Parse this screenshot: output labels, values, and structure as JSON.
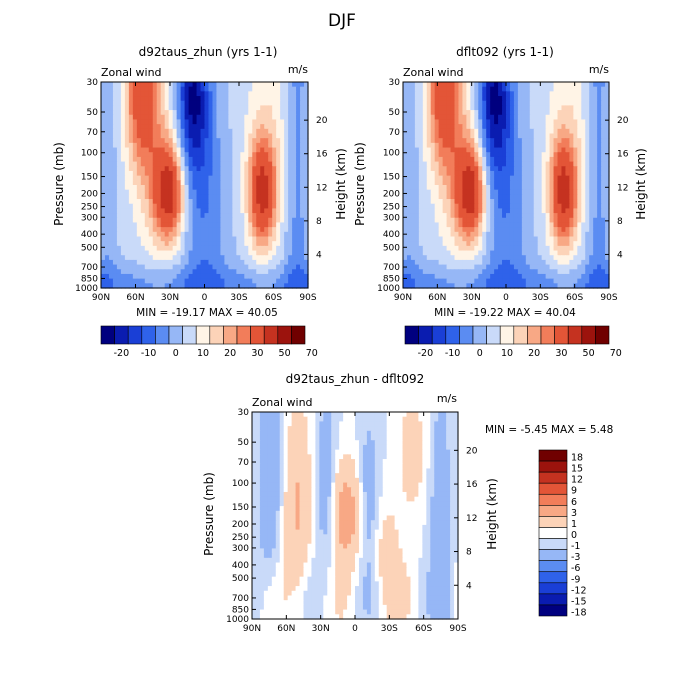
{
  "figure_title": "DJF",
  "colors": {
    "main_scale": [
      "#00007f",
      "#0a1cb0",
      "#1a3fd6",
      "#2f62ea",
      "#5b8cf2",
      "#96b7f6",
      "#c9daf9",
      "#fff4e6",
      "#fcd3b8",
      "#f8a885",
      "#f27d5a",
      "#e35537",
      "#c53220",
      "#9c130d",
      "#700000"
    ],
    "diff_scale": [
      "#00007f",
      "#0a1cb0",
      "#1a3fd6",
      "#2f62ea",
      "#5b8cf2",
      "#96b7f6",
      "#c9daf9",
      "#ffffff",
      "#fcd3b8",
      "#f8a885",
      "#f27d5a",
      "#e35537",
      "#c53220",
      "#9c130d",
      "#700000"
    ]
  },
  "chart_data": [
    {
      "type": "contour",
      "id": "top-left",
      "title": "d92taus_zhun (yrs 1-1)",
      "subtitle_left": "Zonal wind",
      "subtitle_right": "m/s",
      "ylabel": "Pressure (mb)",
      "y2label": "Height (km)",
      "x_ticks": [
        "90N",
        "60N",
        "30N",
        "0",
        "30S",
        "60S",
        "90S"
      ],
      "y_ticks": [
        "30",
        "50",
        "70",
        "100",
        "150",
        "200",
        "250",
        "300",
        "400",
        "500",
        "700",
        "850",
        "1000"
      ],
      "y_values": [
        30,
        50,
        70,
        100,
        150,
        200,
        250,
        300,
        400,
        500,
        700,
        850,
        1000
      ],
      "y2_ticks": [
        "20",
        "16",
        "12",
        "8",
        "4"
      ],
      "ylim": [
        1000,
        30
      ],
      "stats": "MIN = -19.17   MAX = 40.05",
      "min": -19.17,
      "max": 40.05,
      "colorbar_labels": [
        "-20",
        "-10",
        "0",
        "10",
        "20",
        "30",
        "50",
        "70"
      ],
      "features": [
        {
          "lat": 55,
          "p": 30,
          "value": 30,
          "spread_lat": 10
        },
        {
          "lat": 30,
          "p": 200,
          "value": 40,
          "spread_lat": 9
        },
        {
          "lat": -52,
          "p": 200,
          "value": 35,
          "spread_lat": 9
        },
        {
          "lat": 10,
          "p": 40,
          "value": -19,
          "spread_lat": 10
        },
        {
          "lat": 0,
          "p": 300,
          "value": -5,
          "spread_lat": 18
        }
      ]
    },
    {
      "type": "contour",
      "id": "top-right",
      "title": "dflt092 (yrs 1-1)",
      "subtitle_left": "Zonal wind",
      "subtitle_right": "m/s",
      "ylabel": "Pressure (mb)",
      "y2label": "Height (km)",
      "x_ticks": [
        "90N",
        "60N",
        "30N",
        "0",
        "30S",
        "60S",
        "90S"
      ],
      "y_ticks": [
        "30",
        "50",
        "70",
        "100",
        "150",
        "200",
        "250",
        "300",
        "400",
        "500",
        "700",
        "850",
        "1000"
      ],
      "y_values": [
        30,
        50,
        70,
        100,
        150,
        200,
        250,
        300,
        400,
        500,
        700,
        850,
        1000
      ],
      "y2_ticks": [
        "20",
        "16",
        "12",
        "8",
        "4"
      ],
      "ylim": [
        1000,
        30
      ],
      "stats": "MIN = -19.22   MAX = 40.04",
      "min": -19.22,
      "max": 40.04,
      "colorbar_labels": [
        "-20",
        "-10",
        "0",
        "10",
        "20",
        "30",
        "50",
        "70"
      ],
      "features": [
        {
          "lat": 55,
          "p": 30,
          "value": 30,
          "spread_lat": 10
        },
        {
          "lat": 30,
          "p": 200,
          "value": 40,
          "spread_lat": 9
        },
        {
          "lat": -52,
          "p": 200,
          "value": 35,
          "spread_lat": 9
        },
        {
          "lat": 10,
          "p": 40,
          "value": -19,
          "spread_lat": 10
        },
        {
          "lat": 0,
          "p": 300,
          "value": -5,
          "spread_lat": 18
        }
      ]
    },
    {
      "type": "contour",
      "id": "bottom-diff",
      "title": "d92taus_zhun - dflt092",
      "subtitle_left": "Zonal wind",
      "subtitle_right": "m/s",
      "ylabel": "Pressure (mb)",
      "y2label": "Height (km)",
      "x_ticks": [
        "90N",
        "60N",
        "30N",
        "0",
        "30S",
        "60S",
        "90S"
      ],
      "y_ticks": [
        "30",
        "50",
        "70",
        "100",
        "150",
        "200",
        "250",
        "300",
        "400",
        "500",
        "700",
        "850",
        "1000"
      ],
      "y_values": [
        30,
        50,
        70,
        100,
        150,
        200,
        250,
        300,
        400,
        500,
        700,
        850,
        1000
      ],
      "y2_ticks": [
        "20",
        "16",
        "12",
        "8",
        "4"
      ],
      "ylim": [
        1000,
        30
      ],
      "stats": "MIN =   -5.45   MAX =    5.48",
      "min": -5.45,
      "max": 5.48,
      "colorbar_labels": [
        "18",
        "15",
        "12",
        "9",
        "6",
        "3",
        "1",
        "0",
        "-1",
        "-3",
        "-6",
        "-9",
        "-12",
        "-15",
        "-18"
      ]
    }
  ]
}
